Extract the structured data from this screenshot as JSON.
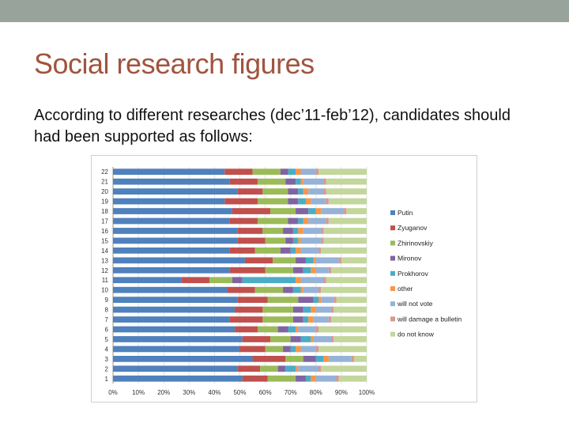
{
  "slide": {
    "title": "Social research figures",
    "body": "According to different researches (dec’11-feb’12), candidates should had been supported as follows:"
  },
  "chart_data": {
    "type": "bar",
    "orientation": "horizontal",
    "stacked": "percent",
    "title": "",
    "xlabel": "",
    "ylabel": "",
    "xlim": [
      0,
      100
    ],
    "x_ticks": [
      "0%",
      "10%",
      "20%",
      "30%",
      "40%",
      "50%",
      "60%",
      "70%",
      "80%",
      "90%",
      "100%"
    ],
    "categories": [
      "1",
      "2",
      "3",
      "4",
      "5",
      "6",
      "7",
      "8",
      "9",
      "10",
      "11",
      "12",
      "13",
      "14",
      "15",
      "16",
      "17",
      "18",
      "19",
      "20",
      "21",
      "22"
    ],
    "legend_position": "right",
    "series": [
      {
        "name": "Putin",
        "color": "#4f81bd",
        "values": [
          51,
          49,
          55,
          50,
          51,
          48,
          46,
          48,
          49,
          45,
          27,
          46,
          52,
          46,
          49,
          49,
          46,
          47,
          44,
          49,
          46,
          44
        ]
      },
      {
        "name": "Zyuganov",
        "color": "#c0504d",
        "values": [
          10,
          9,
          13,
          10,
          11,
          9,
          13,
          11,
          12,
          11,
          11,
          14,
          11,
          10,
          11,
          10,
          11,
          15,
          13,
          10,
          11,
          11
        ]
      },
      {
        "name": "Zhirinovskiy",
        "color": "#9bbb59",
        "values": [
          11,
          7,
          7,
          7,
          8,
          8,
          12,
          12,
          12,
          11,
          9,
          11,
          9,
          10,
          8,
          8,
          12,
          10,
          12,
          10,
          11,
          11
        ]
      },
      {
        "name": "Mironov",
        "color": "#8064a2",
        "values": [
          4,
          3,
          5,
          3,
          4,
          4,
          4,
          4,
          6,
          4,
          4,
          4,
          4,
          4,
          3,
          4,
          4,
          5,
          4,
          4,
          4,
          3
        ]
      },
      {
        "name": "Prokhorov",
        "color": "#4bacc6",
        "values": [
          2,
          4,
          3,
          2,
          4,
          3,
          2,
          3,
          2,
          3,
          21,
          3,
          3,
          2,
          2,
          2,
          2,
          3,
          3,
          2,
          2,
          3
        ]
      },
      {
        "name": "other",
        "color": "#f79646",
        "values": [
          2,
          1,
          2,
          2,
          1,
          1,
          2,
          2,
          1,
          1,
          2,
          2,
          1,
          2,
          1,
          2,
          2,
          2,
          2,
          2,
          1,
          2
        ]
      },
      {
        "name": "will not vote",
        "color": "#95b3d7",
        "values": [
          8,
          8,
          9,
          6,
          7,
          7,
          6,
          6,
          5,
          6,
          9,
          5,
          9,
          7,
          8,
          7,
          7,
          9,
          6,
          6,
          8,
          6
        ]
      },
      {
        "name": "will damage a bulletin",
        "color": "#d99694",
        "values": [
          1,
          1,
          1,
          1,
          1,
          1,
          1,
          1,
          1,
          1,
          1,
          1,
          1,
          1,
          1,
          1,
          1,
          1,
          1,
          1,
          1,
          1
        ]
      },
      {
        "name": "do not know",
        "color": "#c3d69b",
        "values": [
          11,
          18,
          5,
          19,
          13,
          19,
          14,
          13,
          12,
          18,
          16,
          14,
          10,
          18,
          17,
          17,
          15,
          8,
          15,
          16,
          16,
          19
        ]
      }
    ]
  }
}
